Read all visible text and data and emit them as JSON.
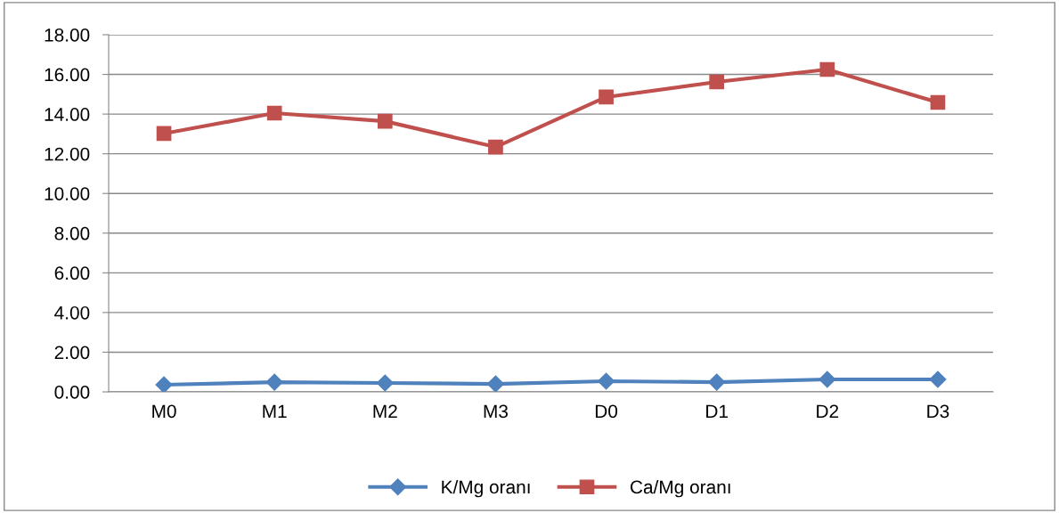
{
  "chart_data": {
    "type": "line",
    "categories": [
      "M0",
      "M1",
      "M2",
      "M3",
      "D0",
      "D1",
      "D2",
      "D3"
    ],
    "series": [
      {
        "name": "K/Mg oranı",
        "color": "#4f81bd",
        "marker": "diamond",
        "values": [
          0.36,
          0.49,
          0.45,
          0.4,
          0.54,
          0.49,
          0.63,
          0.63
        ]
      },
      {
        "name": "Ca/Mg oranı",
        "color": "#c0504d",
        "marker": "square",
        "values": [
          13.02,
          14.05,
          13.64,
          12.34,
          14.86,
          15.62,
          16.25,
          14.59
        ]
      }
    ],
    "ylim": [
      0,
      18
    ],
    "yticks": [
      {
        "value": 0,
        "label": "0.00"
      },
      {
        "value": 2,
        "label": "2.00"
      },
      {
        "value": 4,
        "label": "4.00"
      },
      {
        "value": 6,
        "label": "6.00"
      },
      {
        "value": 8,
        "label": "8.00"
      },
      {
        "value": 10,
        "label": "10.00"
      },
      {
        "value": 12,
        "label": "12.00"
      },
      {
        "value": 14,
        "label": "14.00"
      },
      {
        "value": 16,
        "label": "16.00"
      },
      {
        "value": 18,
        "label": "18.00"
      }
    ],
    "grid": "y",
    "legend": "bottom",
    "line_style": "solid"
  }
}
